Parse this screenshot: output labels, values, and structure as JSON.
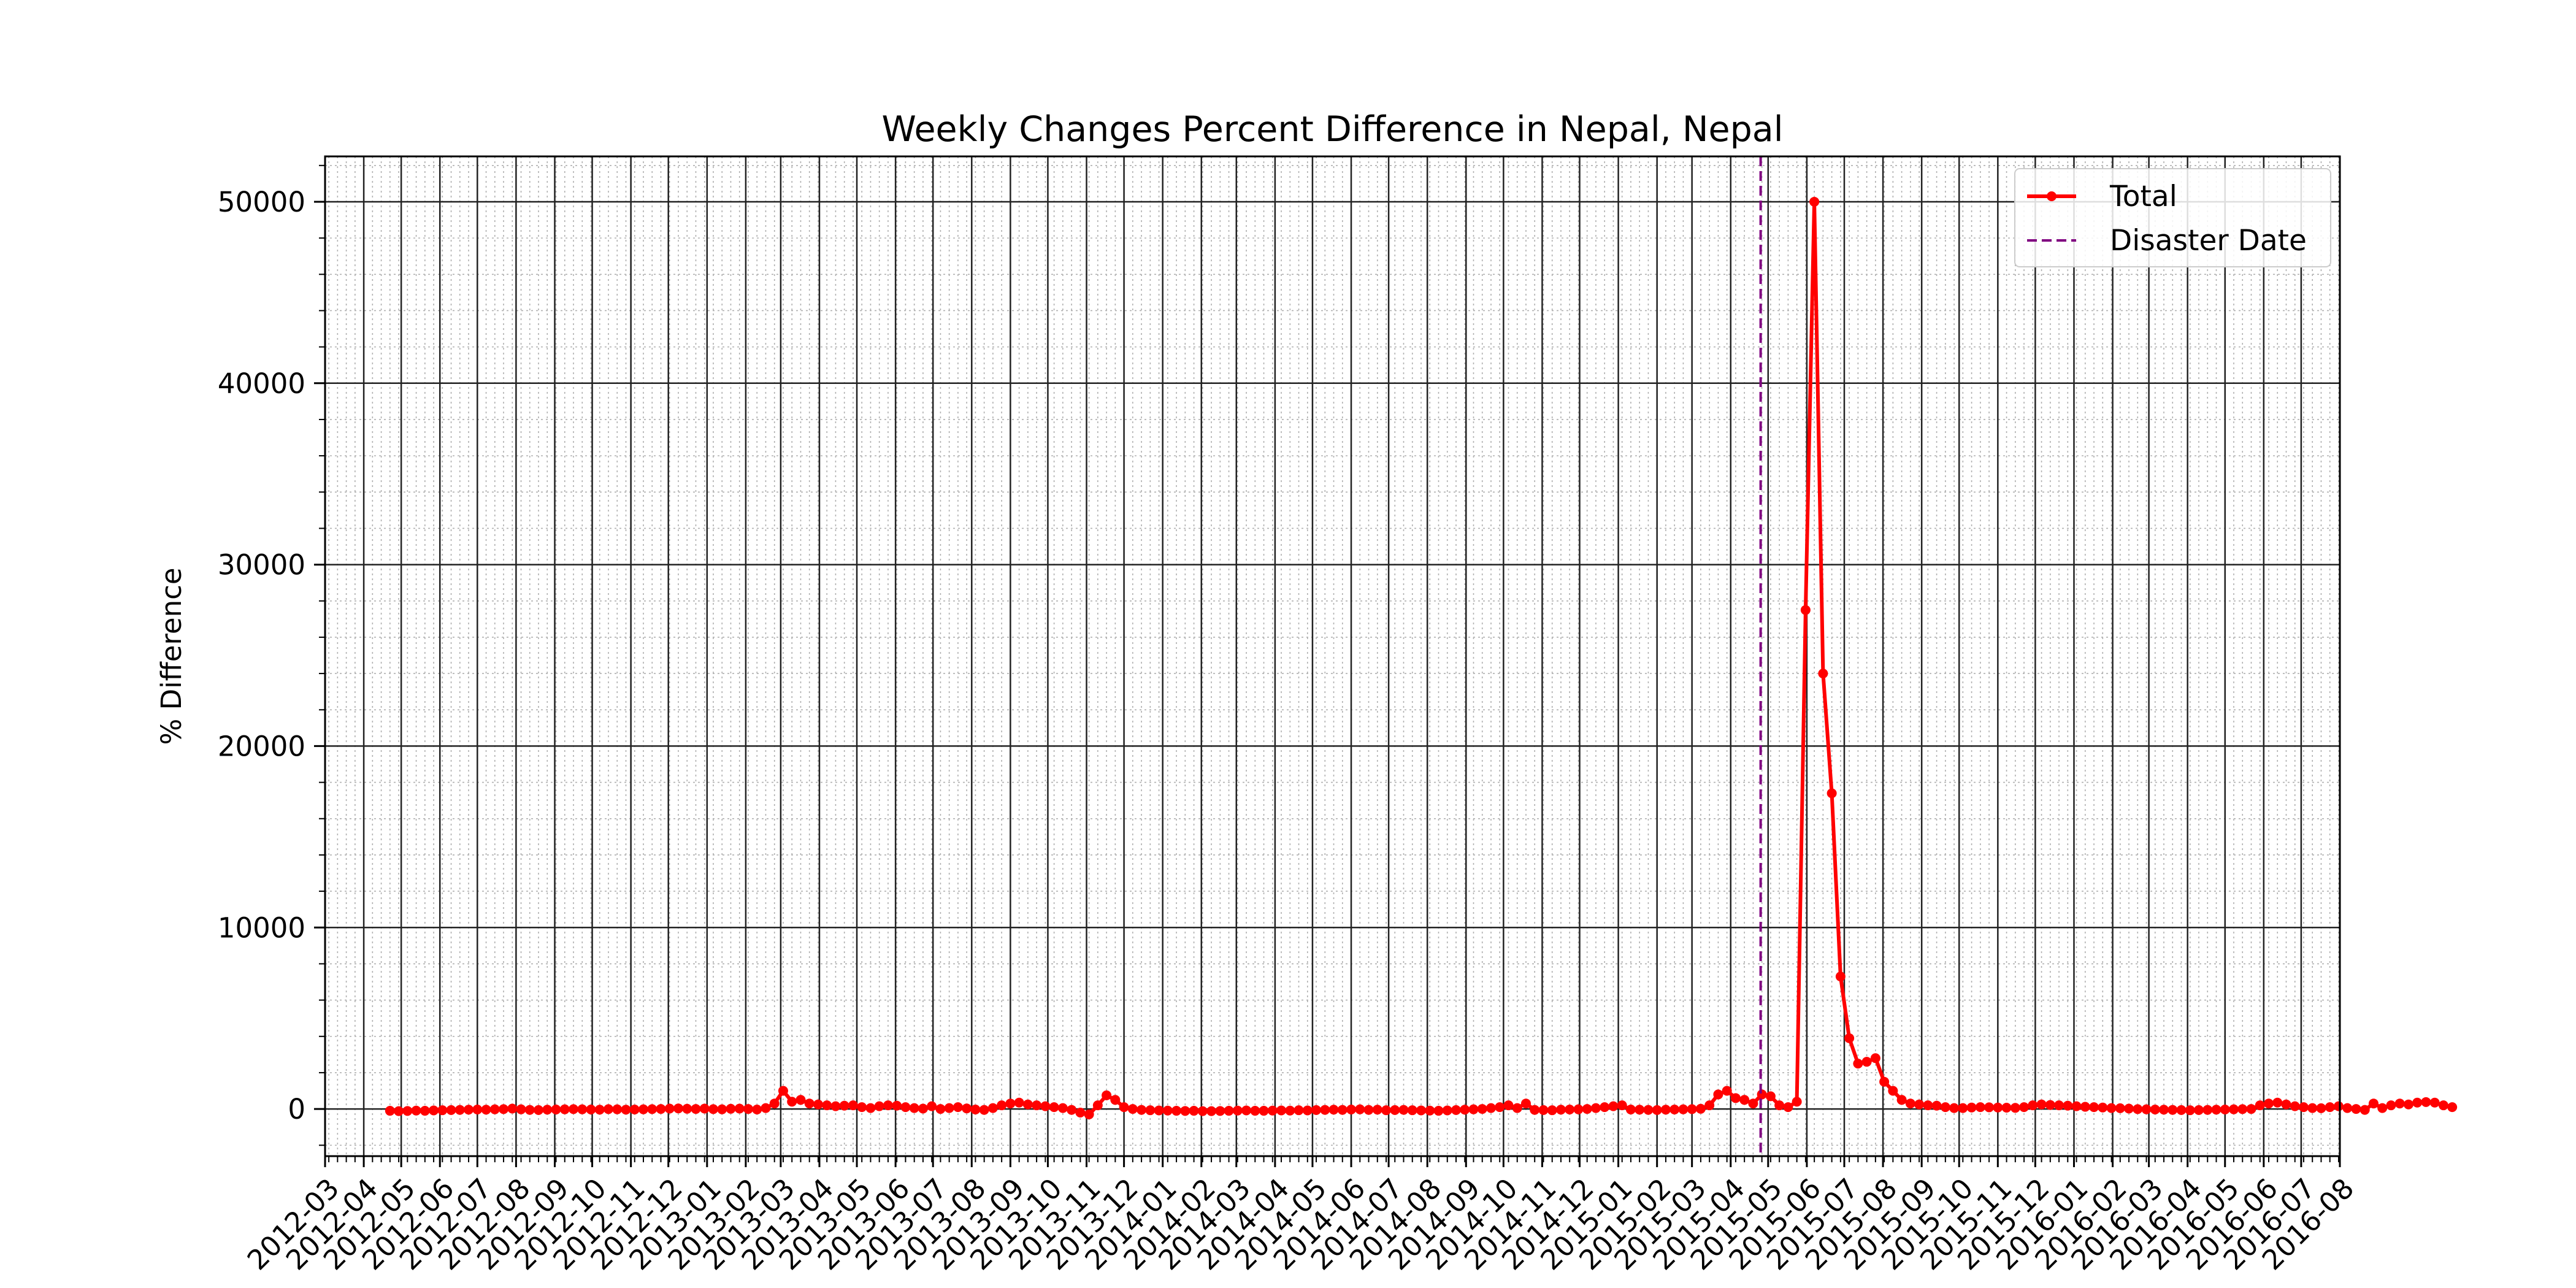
{
  "chart_data": {
    "type": "line",
    "title": "Weekly Changes Percent Difference in Nepal, Nepal",
    "xlabel": "",
    "ylabel": "% Difference",
    "x_tick_labels": [
      "2012-03",
      "2012-04",
      "2012-05",
      "2012-06",
      "2012-07",
      "2012-08",
      "2012-09",
      "2012-10",
      "2012-11",
      "2012-12",
      "2013-01",
      "2013-02",
      "2013-03",
      "2013-04",
      "2013-05",
      "2013-06",
      "2013-07",
      "2013-08",
      "2013-09",
      "2013-10",
      "2013-11",
      "2013-12",
      "2014-01",
      "2014-02",
      "2014-03",
      "2014-04",
      "2014-05",
      "2014-06",
      "2014-07",
      "2014-08",
      "2014-09",
      "2014-10",
      "2014-11",
      "2014-12",
      "2015-01",
      "2015-02",
      "2015-03",
      "2015-04",
      "2015-05",
      "2015-06",
      "2015-07",
      "2015-08",
      "2015-09",
      "2015-10",
      "2015-11",
      "2015-12",
      "2016-01",
      "2016-02",
      "2016-03",
      "2016-04",
      "2016-05",
      "2016-06",
      "2016-07",
      "2016-08"
    ],
    "y_tick_labels": [
      "0",
      "10000",
      "20000",
      "30000",
      "40000",
      "50000"
    ],
    "xlim": [
      "2012-03-01",
      "2016-08-01"
    ],
    "ylim": [
      -2600,
      52500
    ],
    "grid": true,
    "legend_position": "top-right",
    "disaster_date": "2015-04-25",
    "series": [
      {
        "name": "Total",
        "color": "#ff0000",
        "marker": "circle",
        "start_date": "2012-04-22",
        "step_days": 7,
        "values": [
          -100,
          -120,
          -110,
          -90,
          -100,
          -80,
          -70,
          -60,
          -50,
          -40,
          -30,
          -40,
          -20,
          -10,
          20,
          -20,
          -50,
          -60,
          -40,
          -30,
          -20,
          -10,
          -20,
          -30,
          -40,
          -10,
          -20,
          -40,
          -30,
          -20,
          -10,
          0,
          20,
          30,
          10,
          0,
          20,
          -10,
          -20,
          10,
          20,
          0,
          -30,
          50,
          300,
          1000,
          400,
          500,
          300,
          250,
          200,
          150,
          180,
          200,
          100,
          50,
          150,
          200,
          180,
          100,
          50,
          20,
          150,
          0,
          50,
          100,
          30,
          -30,
          -50,
          50,
          200,
          300,
          350,
          250,
          200,
          150,
          100,
          50,
          -50,
          -200,
          -300,
          200,
          750,
          500,
          100,
          0,
          -50,
          -70,
          -80,
          -90,
          -100,
          -110,
          -100,
          -120,
          -120,
          -110,
          -100,
          -90,
          -80,
          -100,
          -100,
          -90,
          -80,
          -90,
          -70,
          -80,
          -60,
          -50,
          -40,
          -50,
          -30,
          -20,
          -50,
          -40,
          -70,
          -60,
          -50,
          -70,
          -80,
          -90,
          -100,
          -80,
          -60,
          -40,
          -20,
          0,
          50,
          100,
          200,
          50,
          300,
          -50,
          -60,
          -70,
          -40,
          -30,
          -20,
          0,
          50,
          100,
          150,
          200,
          -30,
          -40,
          -50,
          -60,
          -40,
          -30,
          -20,
          -10,
          10,
          200,
          800,
          1000,
          600,
          500,
          300,
          800,
          700,
          200,
          100,
          400,
          27500,
          50000,
          24000,
          17400,
          7300,
          3900,
          2500,
          2600,
          2800,
          1500,
          1000,
          500,
          300,
          250,
          200,
          180,
          100,
          50,
          50,
          80,
          100,
          90,
          80,
          70,
          60,
          100,
          200,
          250,
          220,
          200,
          180,
          150,
          120,
          100,
          80,
          50,
          40,
          20,
          -10,
          -20,
          -30,
          -40,
          -50,
          -60,
          -70,
          -60,
          -50,
          -40,
          -30,
          -20,
          -10,
          0,
          200,
          300,
          350,
          250,
          150,
          100,
          50,
          40,
          100,
          150,
          50,
          0,
          -50,
          300,
          50,
          200,
          300,
          250,
          350,
          380,
          350,
          200,
          100
        ]
      },
      {
        "name": "Disaster Date",
        "color": "#800080",
        "style": "dashed"
      }
    ]
  }
}
